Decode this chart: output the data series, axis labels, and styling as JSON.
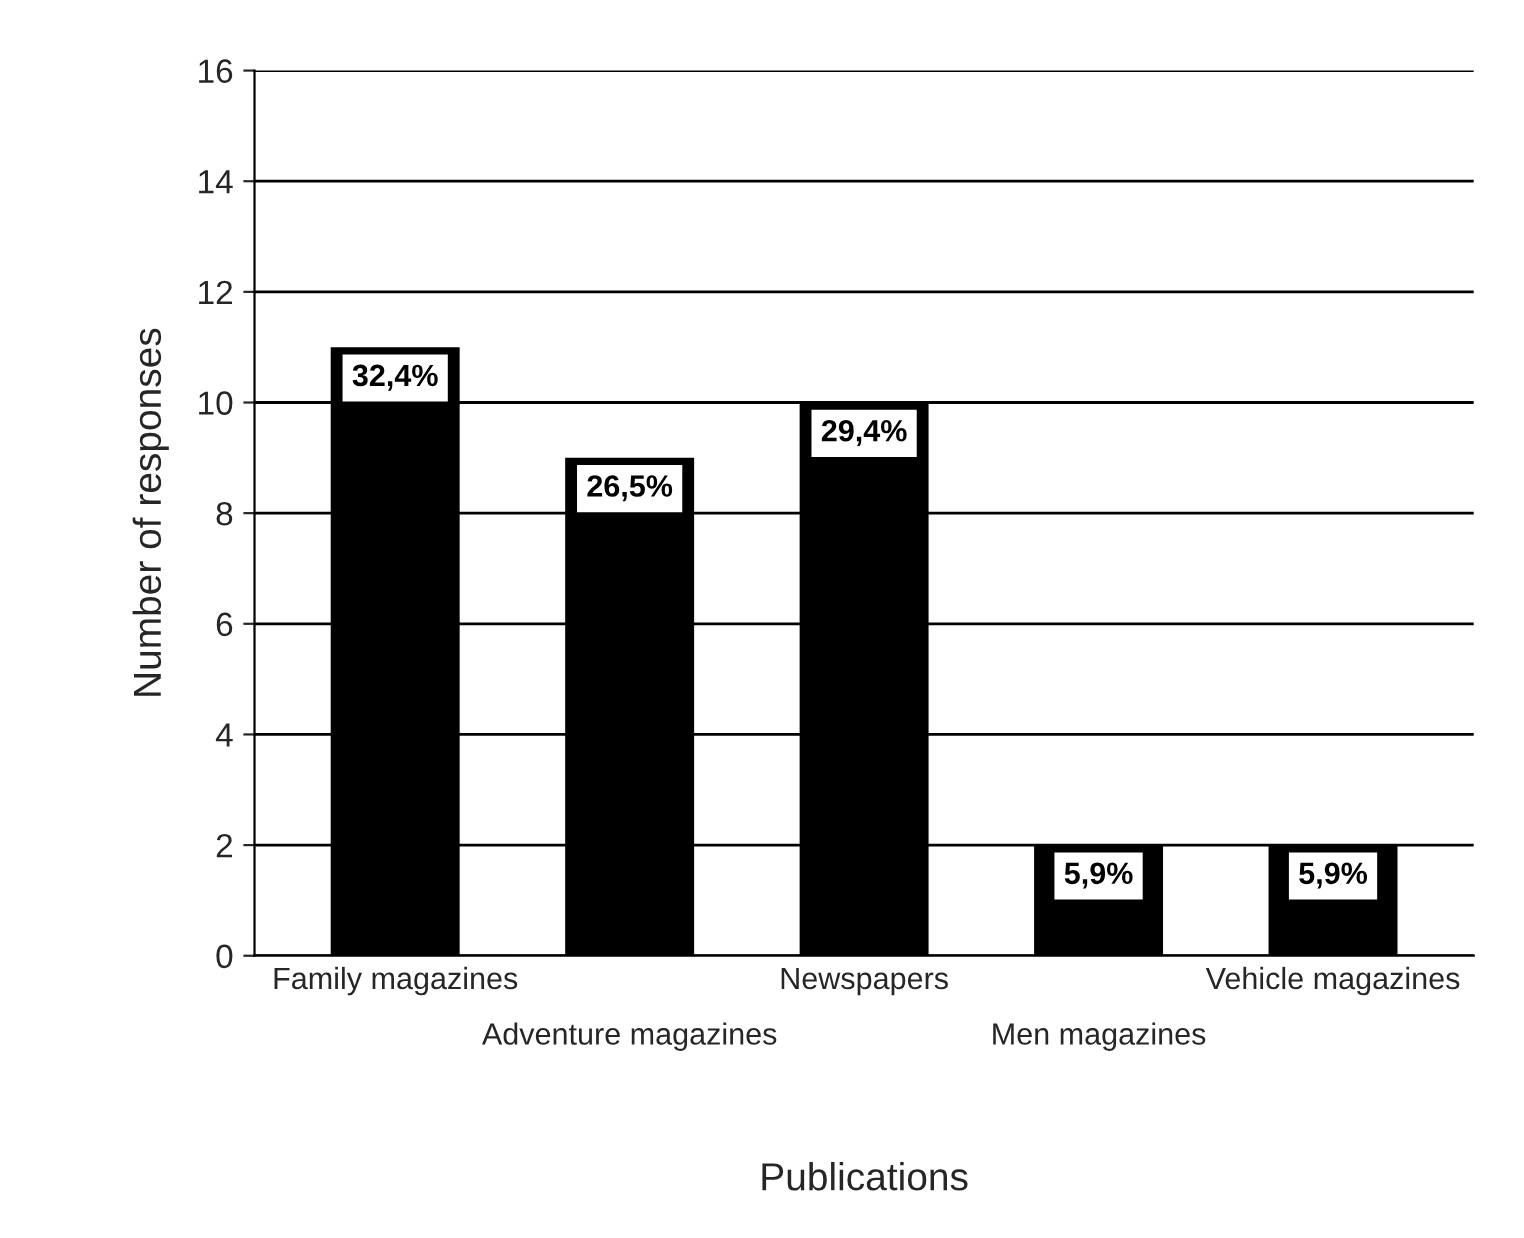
{
  "chart_data": {
    "type": "bar",
    "xlabel": "Publications",
    "ylabel": "Number of responses",
    "categories": [
      "Family magazines",
      "Adventure magazines",
      "Newspapers",
      "Men magazines",
      "Vehicle magazines"
    ],
    "values": [
      11,
      9,
      10,
      2,
      2
    ],
    "color": "#000000",
    "annotations": [
      {
        "text": "32,4%",
        "x": "Family magazines",
        "y": 11
      },
      {
        "text": "26,5%",
        "x": "Adventure magazines",
        "y": 9
      },
      {
        "text": "29,4%",
        "x": "Newspapers",
        "y": 10
      },
      {
        "text": "5,9%",
        "x": "Men magazines",
        "y": 2
      },
      {
        "text": "5,9%",
        "x": "Vehicle magazines",
        "y": 2
      }
    ],
    "ylim": [
      0,
      16
    ],
    "yticks": [
      0,
      2,
      4,
      6,
      8,
      10,
      12,
      14,
      16
    ],
    "grid": "y"
  }
}
